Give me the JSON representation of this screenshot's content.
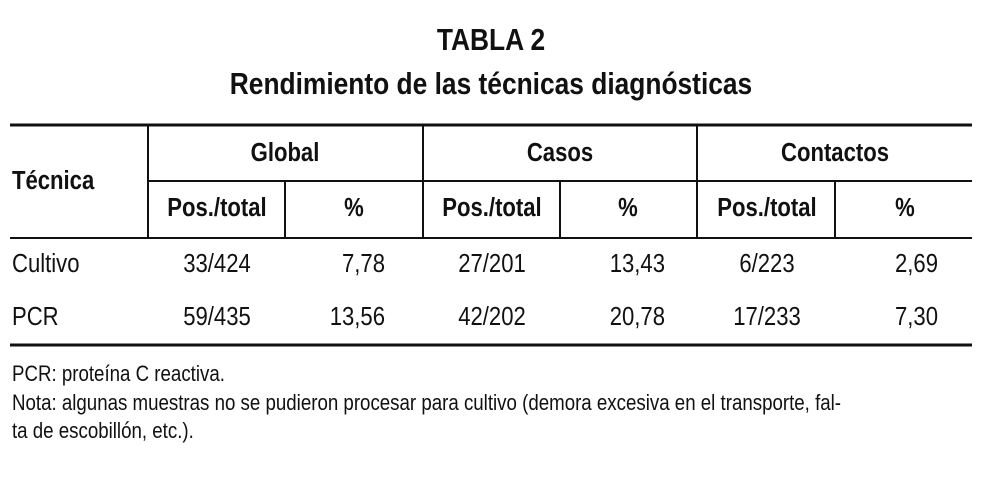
{
  "title": "TABLA 2",
  "subtitle": "Rendimiento de las técnicas diagnósticas",
  "table": {
    "header": {
      "row_label": "Técnica",
      "groups": [
        "Global",
        "Casos",
        "Contactos"
      ],
      "subcolumns": [
        "Pos./total",
        "%",
        "Pos./total",
        "%",
        "Pos./total",
        "%"
      ]
    },
    "rows": [
      [
        "Cultivo",
        "33/424",
        "7,78",
        "27/201",
        "13,43",
        "6/223",
        "2,69"
      ],
      [
        "PCR",
        "59/435",
        "13,56",
        "42/202",
        "20,78",
        "17/233",
        "7,30"
      ]
    ]
  },
  "footnotes": [
    "PCR: proteína C reactiva.",
    "Nota: algunas muestras no se pudieron procesar para cultivo (demora excesiva en el transporte, fal-",
    "ta de escobillón, etc.)."
  ]
}
